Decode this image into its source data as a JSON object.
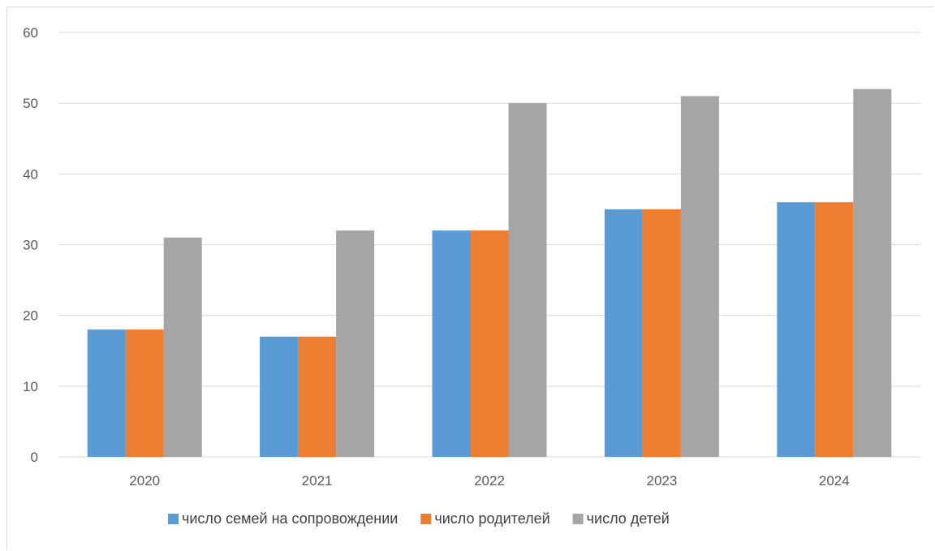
{
  "chart_data": {
    "type": "bar",
    "categories": [
      "2020",
      "2021",
      "2022",
      "2023",
      "2024"
    ],
    "series": [
      {
        "name": "число семей на сопровождении",
        "color": "#5b9bd5",
        "values": [
          18,
          17,
          32,
          35,
          36
        ]
      },
      {
        "name": "число родителей",
        "color": "#ed7d31",
        "values": [
          18,
          17,
          32,
          35,
          36
        ]
      },
      {
        "name": "число детей",
        "color": "#a5a5a5",
        "values": [
          31,
          32,
          50,
          51,
          52
        ]
      }
    ],
    "ylim": [
      0,
      60
    ],
    "yticks": [
      "0",
      "10",
      "20",
      "30",
      "40",
      "50",
      "60"
    ],
    "grid": true,
    "legend": "bottom",
    "gridline_color": "#d9d9d9"
  }
}
